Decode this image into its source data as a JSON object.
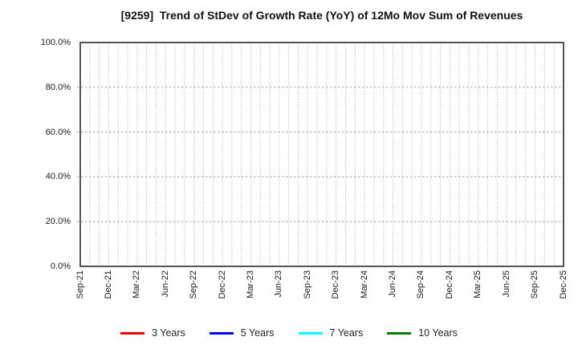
{
  "chart_data": {
    "type": "line",
    "title": "[9259]  Trend of StDev of Growth Rate (YoY) of 12Mo Mov Sum of Revenues",
    "x_tick_labels": [
      "Sep-21",
      "Dec-21",
      "Mar-22",
      "Jun-22",
      "Sep-22",
      "Dec-22",
      "Mar-23",
      "Jun-23",
      "Sep-23",
      "Dec-23",
      "Mar-24",
      "Jun-24",
      "Sep-24",
      "Dec-24",
      "Mar-25",
      "Jun-25",
      "Sep-25",
      "Dec-25"
    ],
    "x_minor_divisions_per_label": 3,
    "y_ticks": [
      0,
      20,
      40,
      60,
      80,
      100
    ],
    "y_tick_labels": [
      "0.0%",
      "20.0%",
      "40.0%",
      "60.0%",
      "80.0%",
      "100.0%"
    ],
    "ylim": [
      0,
      100
    ],
    "grid": "on",
    "legend_position": "bottom",
    "series": [
      {
        "name": "3 Years",
        "color": "#ff0000",
        "values": []
      },
      {
        "name": "5 Years",
        "color": "#0000ff",
        "values": []
      },
      {
        "name": "7 Years",
        "color": "#00ffff",
        "values": []
      },
      {
        "name": "10 Years",
        "color": "#008000",
        "values": []
      }
    ],
    "frame_color": "#2b2b2b",
    "grid_color": "#a6a6a6",
    "text_color": "#1a1a1a"
  }
}
